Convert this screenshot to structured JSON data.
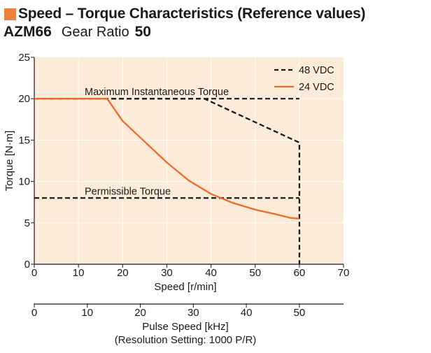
{
  "header": {
    "title": "Speed – Torque Characteristics (Reference values)",
    "model": "AZM66",
    "gear_ratio_label": "Gear Ratio",
    "gear_ratio_value": "50"
  },
  "colors": {
    "plot_bg": "#fdebd9",
    "accent": "#f07f3c",
    "line_48v": "#1a1a1a",
    "line_24v": "#ee6a26"
  },
  "chart_data": {
    "type": "line",
    "title": "Speed – Torque Characteristics (Reference values)",
    "xlabel": "Speed [r/min]",
    "ylabel": "Torque [N·m]",
    "xlim": [
      0,
      70
    ],
    "ylim": [
      0,
      25
    ],
    "x_ticks": [
      "0",
      "10",
      "20",
      "30",
      "40",
      "50",
      "60",
      "70"
    ],
    "y_ticks": [
      "0",
      "5",
      "10",
      "15",
      "20",
      "25"
    ],
    "grid": true,
    "legend_position": "top-right",
    "secondary_x_axis": {
      "label": "Pulse Speed [kHz]",
      "sublabel": "(Resolution Setting: 1000 P/R)",
      "scale_factor": 0.8333,
      "ticks": [
        "0",
        "10",
        "20",
        "30",
        "40",
        "50"
      ]
    },
    "series": [
      {
        "name": "48 VDC",
        "style": "dashed",
        "x": [
          0,
          38.5,
          60,
          60,
          60
        ],
        "y": [
          20,
          20,
          14.7,
          8,
          0
        ]
      },
      {
        "name": "24 VDC",
        "style": "solid",
        "x": [
          0,
          16.5,
          20,
          25,
          30,
          35,
          40,
          45,
          50,
          55,
          58,
          60
        ],
        "y": [
          20,
          20,
          17.3,
          14.8,
          12.3,
          10.1,
          8.5,
          7.4,
          6.6,
          6.0,
          5.6,
          5.5
        ]
      }
    ],
    "reference_lines": [
      {
        "label": "Maximum Instantaneous Torque",
        "x": [
          0,
          60
        ],
        "y": 20
      },
      {
        "label": "Permissible Torque",
        "x": [
          0,
          60
        ],
        "y": 8
      }
    ]
  }
}
